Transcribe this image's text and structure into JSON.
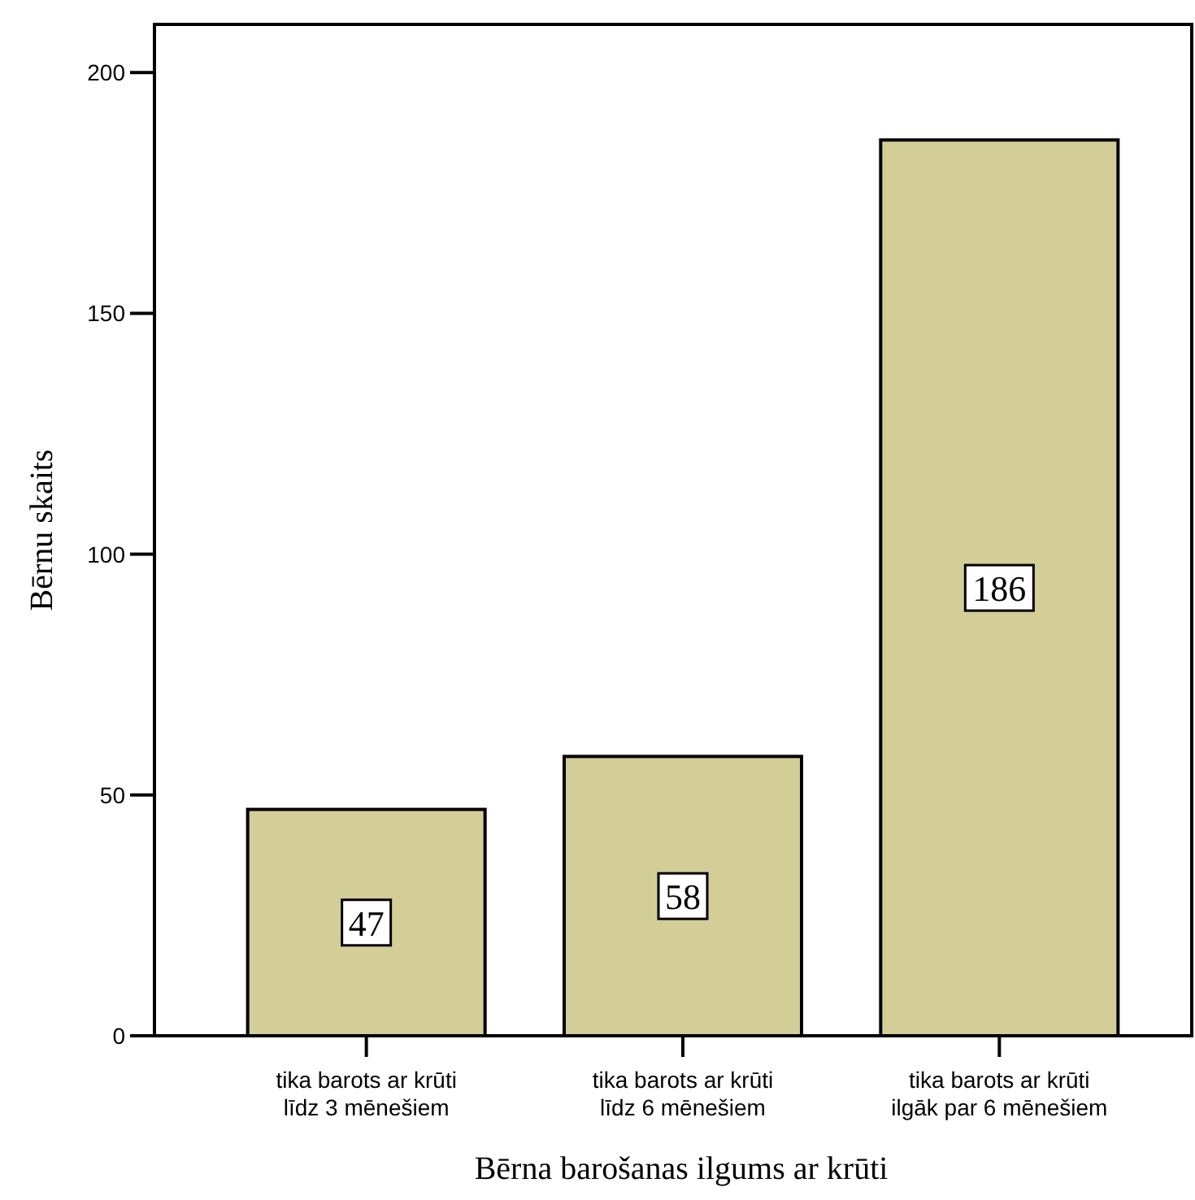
{
  "chart_data": {
    "type": "bar",
    "xlabel": "Bērna barošanas ilgums ar krūti",
    "ylabel": "Bērnu skaits",
    "categories": [
      "tika barots ar krūti\nlīdz 3 mēnešiem",
      "tika barots ar krūti\nlīdz 6 mēnešiem",
      "tika barots ar krūti\nilgāk par 6 mēnešiem"
    ],
    "values": [
      47,
      58,
      186
    ],
    "color": "#d3cd98",
    "ylim": [
      0,
      210
    ],
    "yticks": [
      0,
      50,
      100,
      150,
      200
    ],
    "data_labels": true
  }
}
